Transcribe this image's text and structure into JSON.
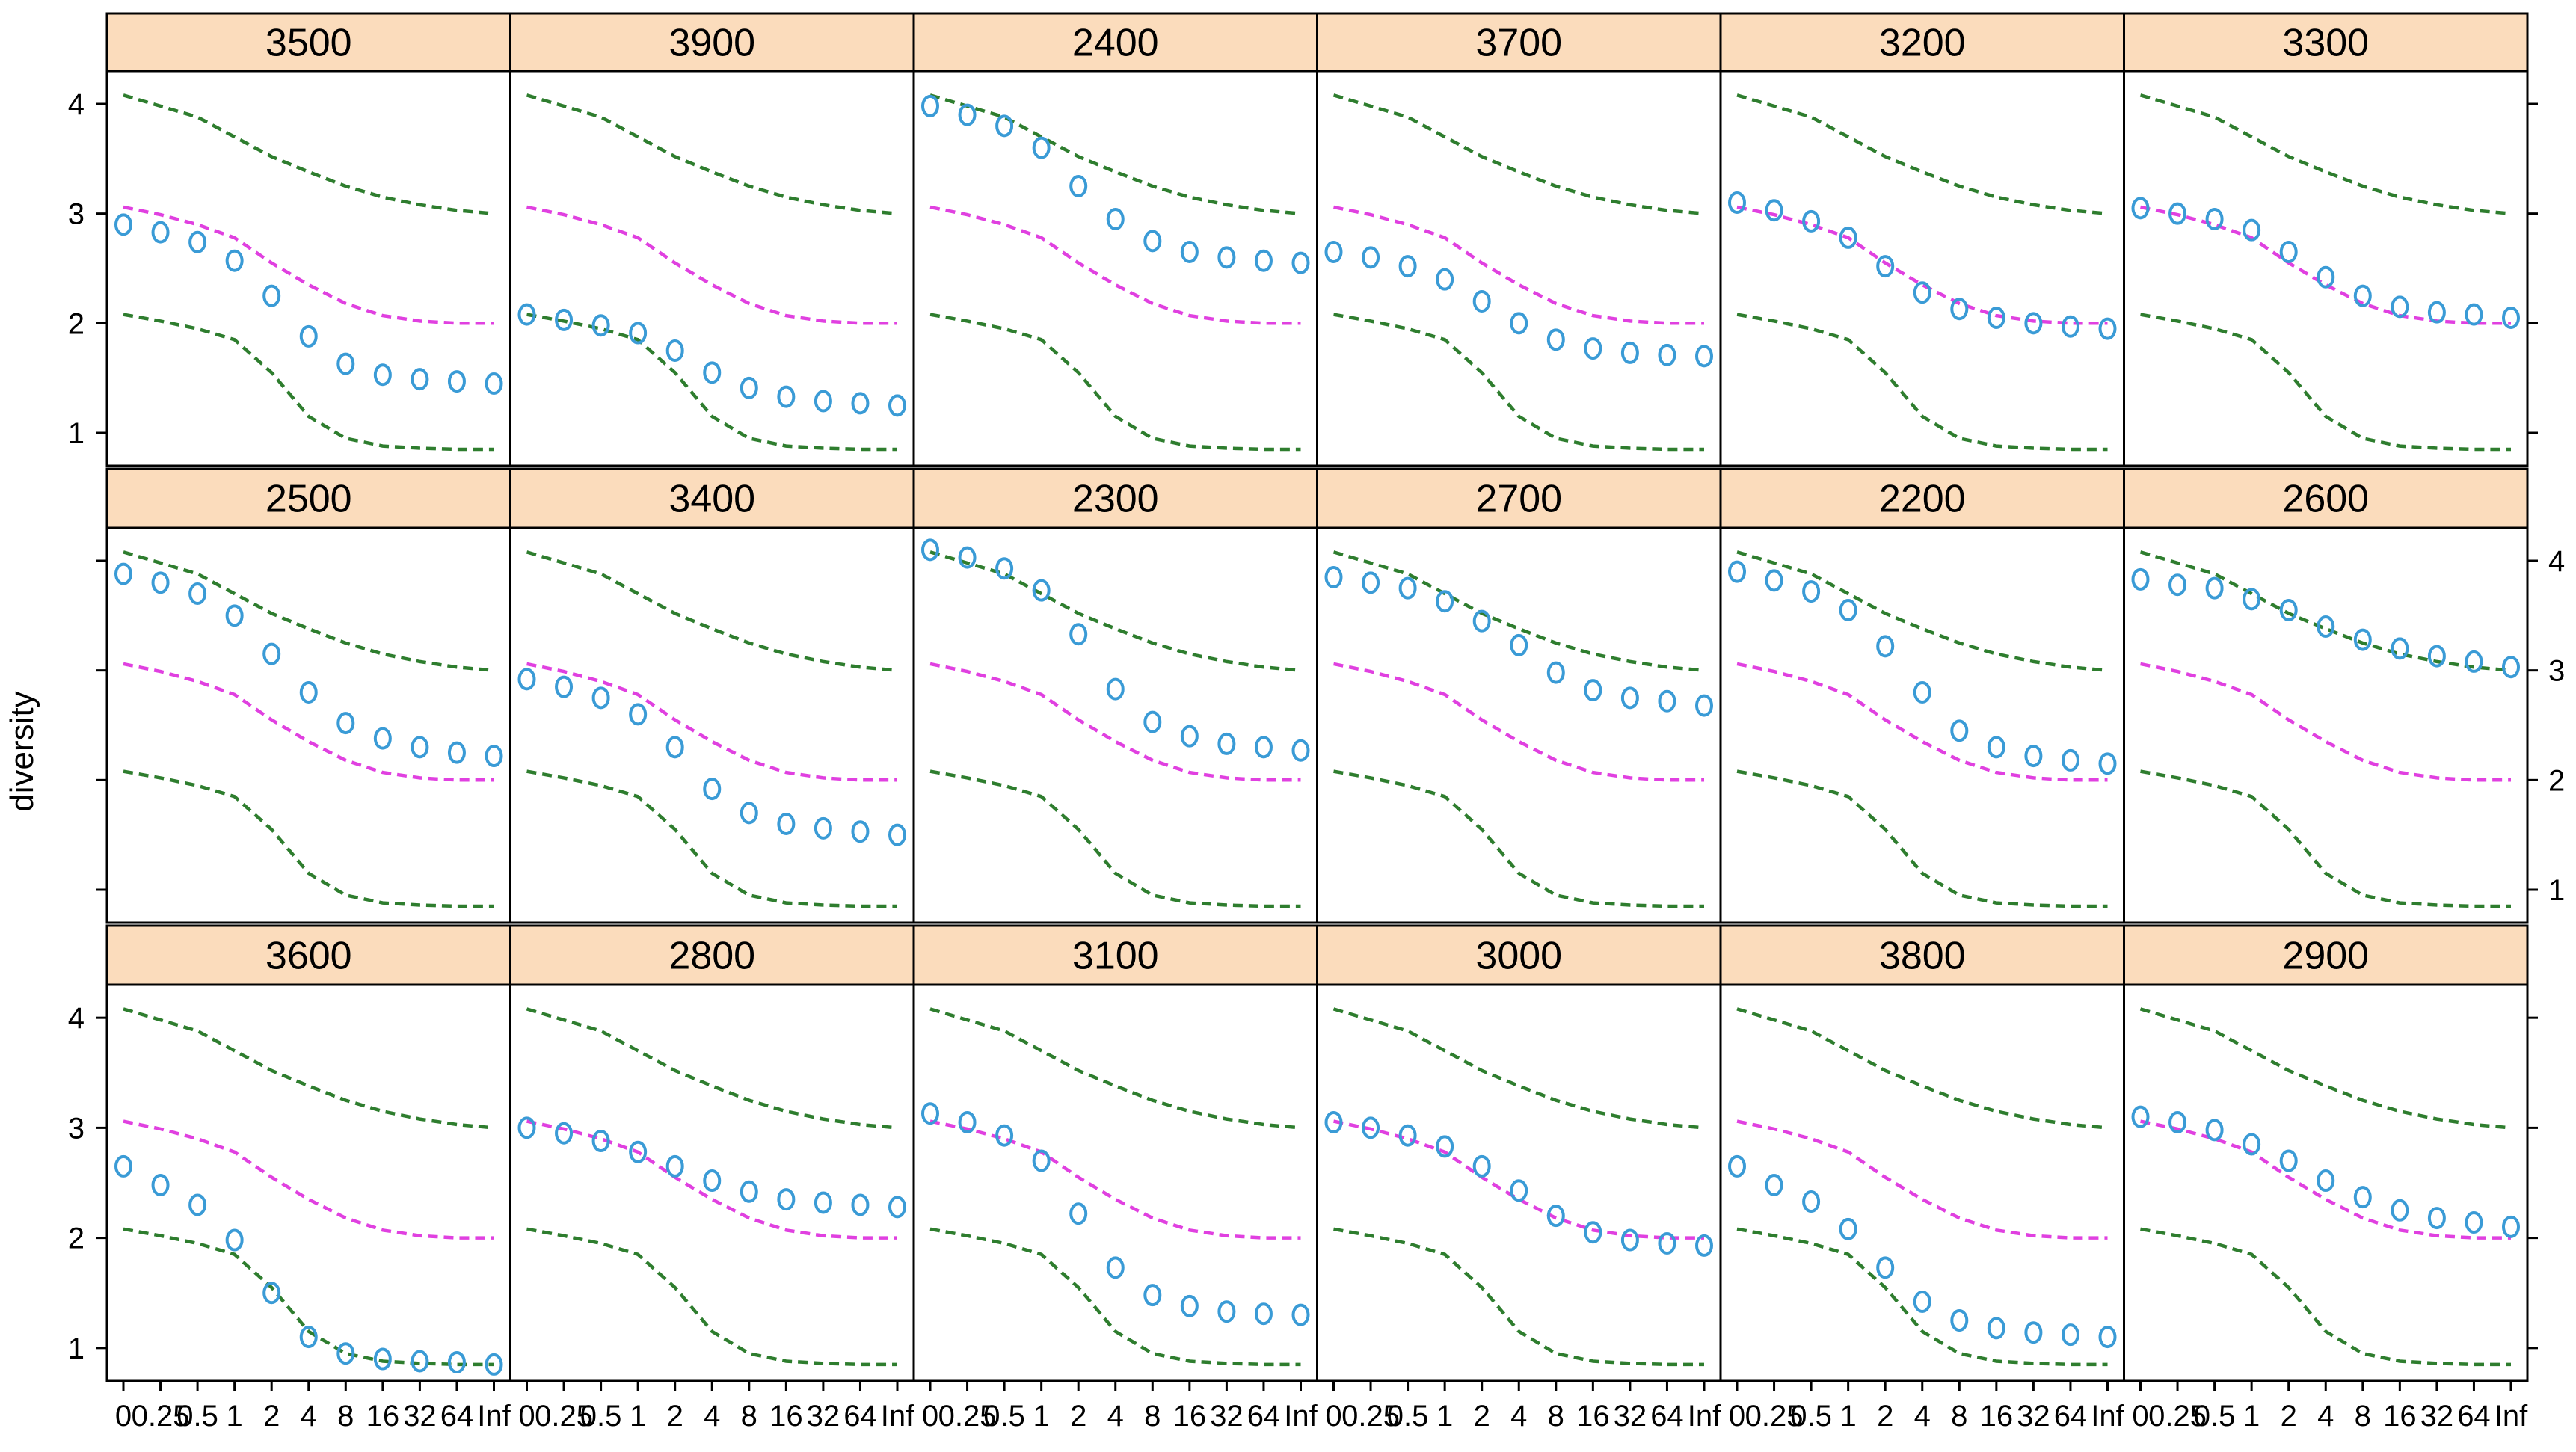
{
  "chart_data": {
    "type": "scatter",
    "title": "",
    "xlabel": "",
    "ylabel": "diversity",
    "x_tick_labels": [
      "0",
      "0.25",
      "0.5",
      "1",
      "2",
      "4",
      "8",
      "16",
      "32",
      "64",
      "Inf"
    ],
    "y_ticks": [
      1,
      2,
      3,
      4
    ],
    "ylim": [
      0.7,
      4.3
    ],
    "reference_lines": {
      "upper": [
        4.08,
        3.98,
        3.88,
        3.7,
        3.52,
        3.38,
        3.25,
        3.15,
        3.08,
        3.03,
        3.0
      ],
      "middle": [
        3.06,
        2.99,
        2.9,
        2.78,
        2.55,
        2.35,
        2.18,
        2.07,
        2.02,
        2.0,
        2.0
      ],
      "lower": [
        2.08,
        2.02,
        1.95,
        1.85,
        1.55,
        1.15,
        0.95,
        0.88,
        0.86,
        0.85,
        0.85
      ]
    },
    "colors": {
      "points": "#3a9bd6",
      "upper_lower": "#2e7d2e",
      "middle": "#e040e0",
      "strip": "#fbdcbc",
      "border": "#000000"
    },
    "panels": [
      {
        "label": "3500",
        "values": [
          2.9,
          2.83,
          2.74,
          2.57,
          2.25,
          1.88,
          1.63,
          1.53,
          1.49,
          1.47,
          1.45
        ]
      },
      {
        "label": "3900",
        "values": [
          2.08,
          2.03,
          1.98,
          1.91,
          1.75,
          1.55,
          1.41,
          1.33,
          1.29,
          1.27,
          1.25
        ]
      },
      {
        "label": "2400",
        "values": [
          3.98,
          3.9,
          3.8,
          3.6,
          3.25,
          2.95,
          2.75,
          2.65,
          2.6,
          2.57,
          2.55
        ]
      },
      {
        "label": "3700",
        "values": [
          2.65,
          2.6,
          2.52,
          2.4,
          2.2,
          2.0,
          1.85,
          1.77,
          1.73,
          1.71,
          1.7
        ]
      },
      {
        "label": "3200",
        "values": [
          3.1,
          3.03,
          2.93,
          2.78,
          2.52,
          2.28,
          2.13,
          2.05,
          2.0,
          1.97,
          1.95
        ]
      },
      {
        "label": "3300",
        "values": [
          3.05,
          3.0,
          2.95,
          2.85,
          2.65,
          2.42,
          2.25,
          2.15,
          2.1,
          2.08,
          2.05
        ]
      },
      {
        "label": "2500",
        "values": [
          3.88,
          3.8,
          3.7,
          3.5,
          3.15,
          2.8,
          2.52,
          2.38,
          2.3,
          2.25,
          2.22
        ]
      },
      {
        "label": "3400",
        "values": [
          2.92,
          2.85,
          2.75,
          2.6,
          2.3,
          1.92,
          1.7,
          1.6,
          1.56,
          1.53,
          1.5
        ]
      },
      {
        "label": "2300",
        "values": [
          4.1,
          4.03,
          3.93,
          3.73,
          3.33,
          2.83,
          2.53,
          2.4,
          2.33,
          2.3,
          2.27
        ]
      },
      {
        "label": "2700",
        "values": [
          3.85,
          3.8,
          3.75,
          3.63,
          3.45,
          3.23,
          2.98,
          2.82,
          2.75,
          2.72,
          2.68
        ]
      },
      {
        "label": "2200",
        "values": [
          3.9,
          3.82,
          3.72,
          3.55,
          3.22,
          2.8,
          2.45,
          2.3,
          2.22,
          2.18,
          2.15
        ]
      },
      {
        "label": "2600",
        "values": [
          3.83,
          3.78,
          3.75,
          3.65,
          3.55,
          3.4,
          3.28,
          3.2,
          3.13,
          3.08,
          3.03
        ]
      },
      {
        "label": "3600",
        "values": [
          2.65,
          2.48,
          2.3,
          1.98,
          1.5,
          1.1,
          0.95,
          0.9,
          0.88,
          0.87,
          0.85
        ]
      },
      {
        "label": "2800",
        "values": [
          3.0,
          2.95,
          2.88,
          2.78,
          2.65,
          2.52,
          2.42,
          2.35,
          2.32,
          2.3,
          2.28
        ]
      },
      {
        "label": "3100",
        "values": [
          3.13,
          3.05,
          2.93,
          2.7,
          2.22,
          1.73,
          1.48,
          1.38,
          1.33,
          1.31,
          1.3
        ]
      },
      {
        "label": "3000",
        "values": [
          3.05,
          3.0,
          2.93,
          2.83,
          2.65,
          2.43,
          2.2,
          2.05,
          1.98,
          1.95,
          1.93
        ]
      },
      {
        "label": "3800",
        "values": [
          2.65,
          2.48,
          2.33,
          2.08,
          1.73,
          1.42,
          1.25,
          1.18,
          1.14,
          1.12,
          1.1
        ]
      },
      {
        "label": "2900",
        "values": [
          3.1,
          3.05,
          2.98,
          2.85,
          2.7,
          2.52,
          2.37,
          2.25,
          2.18,
          2.14,
          2.1
        ]
      }
    ]
  }
}
